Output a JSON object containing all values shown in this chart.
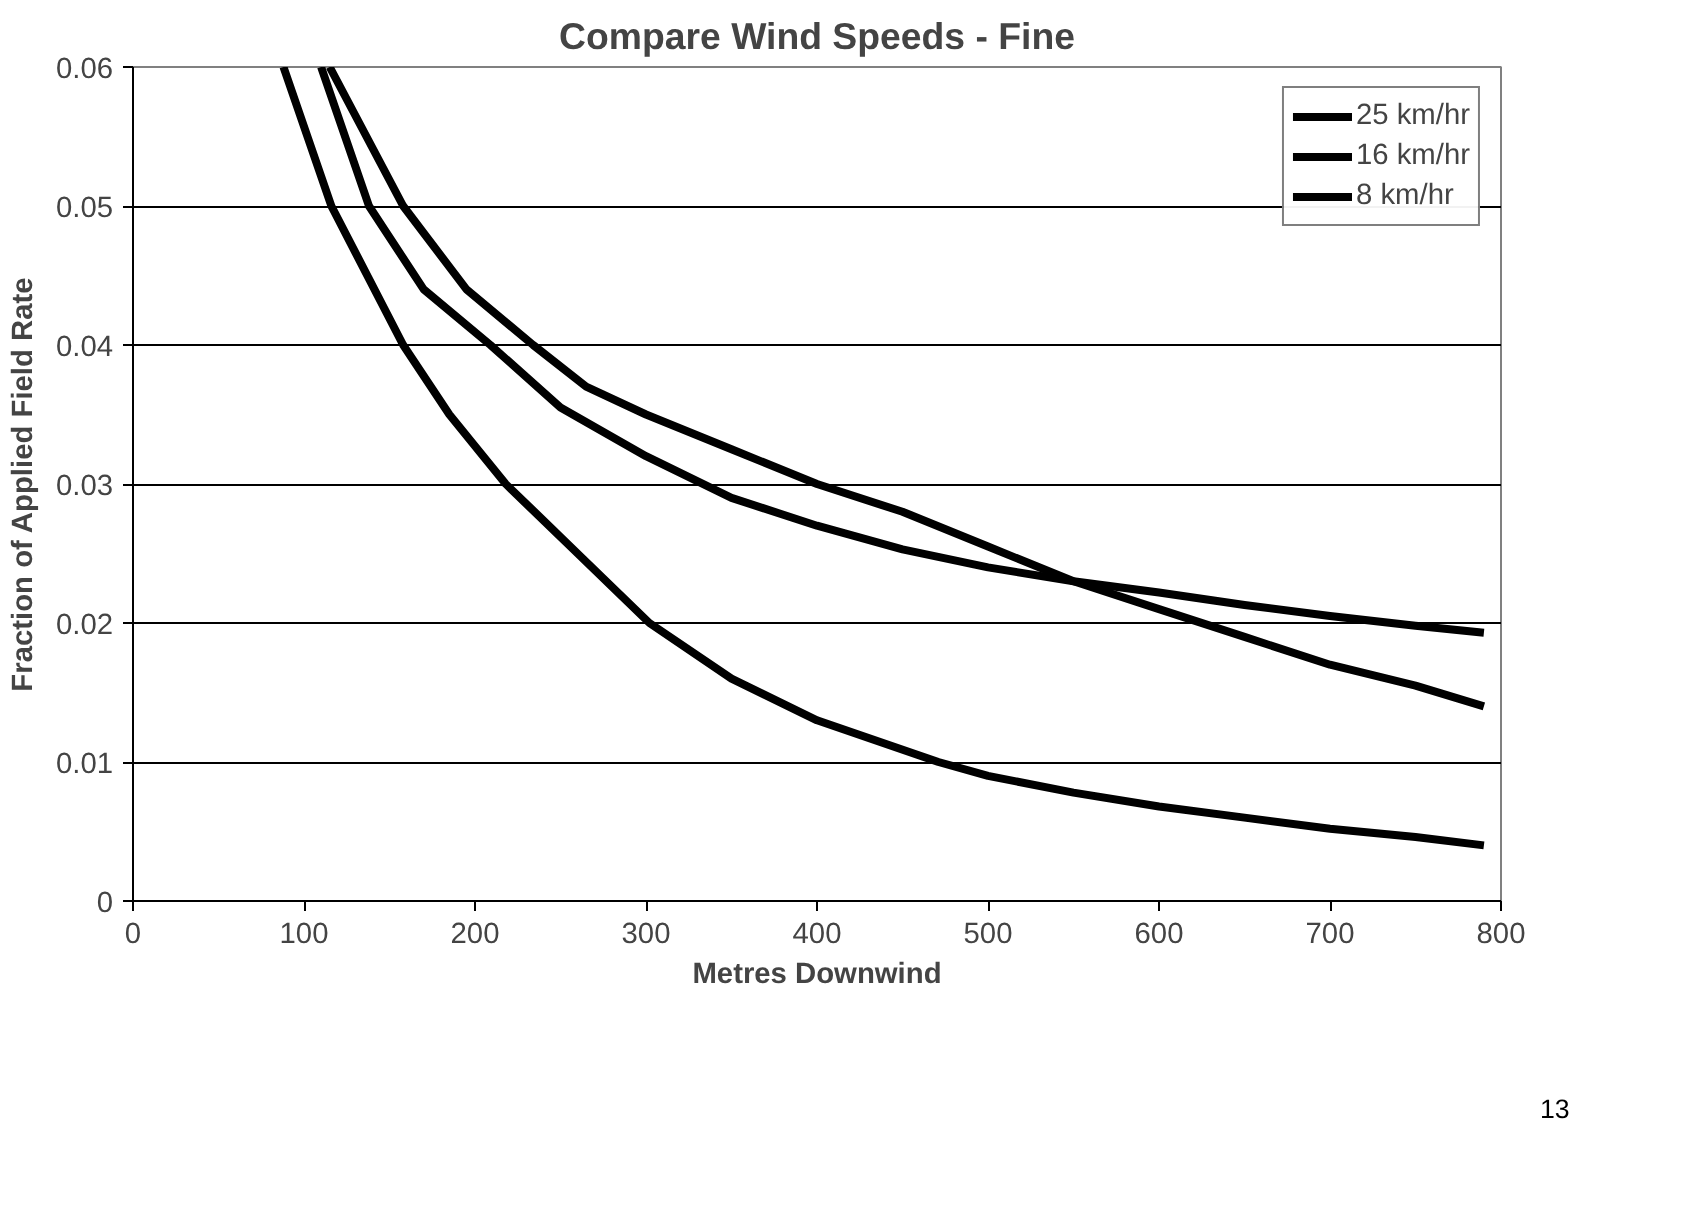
{
  "chart_data": {
    "type": "line",
    "title": "Compare Wind Speeds - Fine",
    "xlabel": "Metres Downwind",
    "ylabel": "Fraction of Applied Field Rate",
    "xlim": [
      0,
      800
    ],
    "xticks": [
      0,
      100,
      200,
      300,
      400,
      500,
      600,
      700,
      800
    ],
    "ylim": [
      0,
      0.06
    ],
    "yticks": [
      0,
      0.01,
      0.02,
      0.03,
      0.04,
      0.05,
      0.06
    ],
    "grid": "y",
    "legend": "top right",
    "line_style": "solid",
    "marker": "none",
    "annotations": [
      "13"
    ],
    "series": [
      {
        "name": "25 km/hr",
        "color": "#000000",
        "x": [
          110,
          138,
          170,
          209,
          250,
          300,
          350,
          400,
          450,
          500,
          550,
          600,
          650,
          700,
          750,
          790
        ],
        "values": [
          0.06,
          0.05,
          0.044,
          0.04,
          0.0355,
          0.032,
          0.029,
          0.027,
          0.0253,
          0.024,
          0.023,
          0.0222,
          0.0213,
          0.0205,
          0.0198,
          0.0193
        ]
      },
      {
        "name": "16 km/hr",
        "color": "#000000",
        "x": [
          115,
          158,
          195,
          234,
          265,
          300,
          350,
          400,
          450,
          500,
          550,
          600,
          650,
          700,
          750,
          790
        ],
        "values": [
          0.06,
          0.05,
          0.044,
          0.04,
          0.037,
          0.035,
          0.0325,
          0.03,
          0.028,
          0.0255,
          0.023,
          0.021,
          0.019,
          0.017,
          0.0155,
          0.014
        ]
      },
      {
        "name": "8 km/hr",
        "color": "#000000",
        "x": [
          88,
          116,
          158,
          185,
          218,
          260,
          302,
          350,
          400,
          471,
          500,
          550,
          600,
          650,
          700,
          750,
          790
        ],
        "values": [
          0.06,
          0.05,
          0.04,
          0.035,
          0.03,
          0.025,
          0.02,
          0.016,
          0.013,
          0.01,
          0.009,
          0.0078,
          0.0068,
          0.006,
          0.0052,
          0.0046,
          0.004
        ]
      }
    ]
  }
}
